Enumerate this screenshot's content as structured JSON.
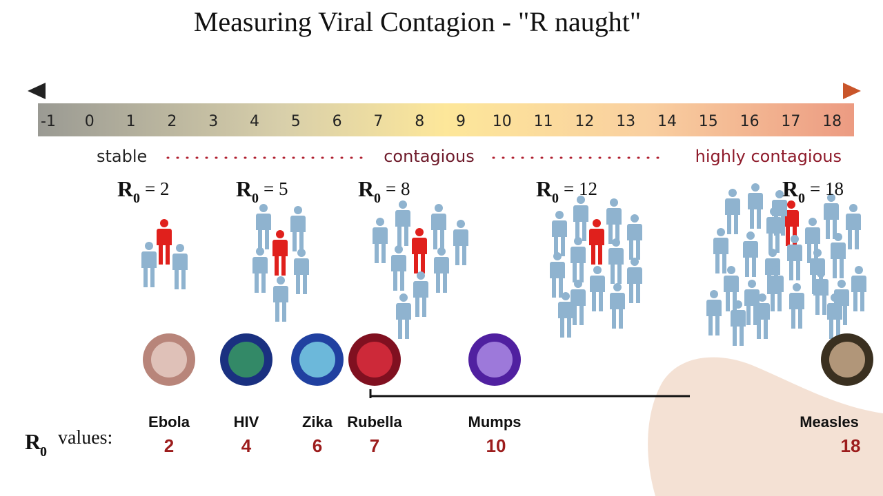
{
  "header": {
    "title": "Measuring Viral Contagion - \"R naught\""
  },
  "scale": {
    "ticks": [
      "-1",
      "0",
      "1",
      "2",
      "3",
      "4",
      "5",
      "6",
      "7",
      "8",
      "9",
      "10",
      "11",
      "12",
      "13",
      "14",
      "15",
      "16",
      "17",
      "18"
    ],
    "zones": [
      "stable",
      "contagious",
      "highly contagious"
    ]
  },
  "r_naught": {
    "letter": "R",
    "subscript": "0"
  },
  "groups": [
    {
      "equation": "= 2"
    },
    {
      "equation": "= 5"
    },
    {
      "equation": "= 8"
    },
    {
      "equation": "= 12"
    },
    {
      "equation": "= 18"
    }
  ],
  "values_label": "values:",
  "viruses": [
    {
      "name": "Ebola",
      "value": "2"
    },
    {
      "name": "HIV",
      "value": "4"
    },
    {
      "name": "Zika",
      "value": "6"
    },
    {
      "name": "Rubella",
      "value": "7"
    },
    {
      "name": "Mumps",
      "value": "10"
    },
    {
      "name": "Measles",
      "value": "18"
    }
  ]
}
